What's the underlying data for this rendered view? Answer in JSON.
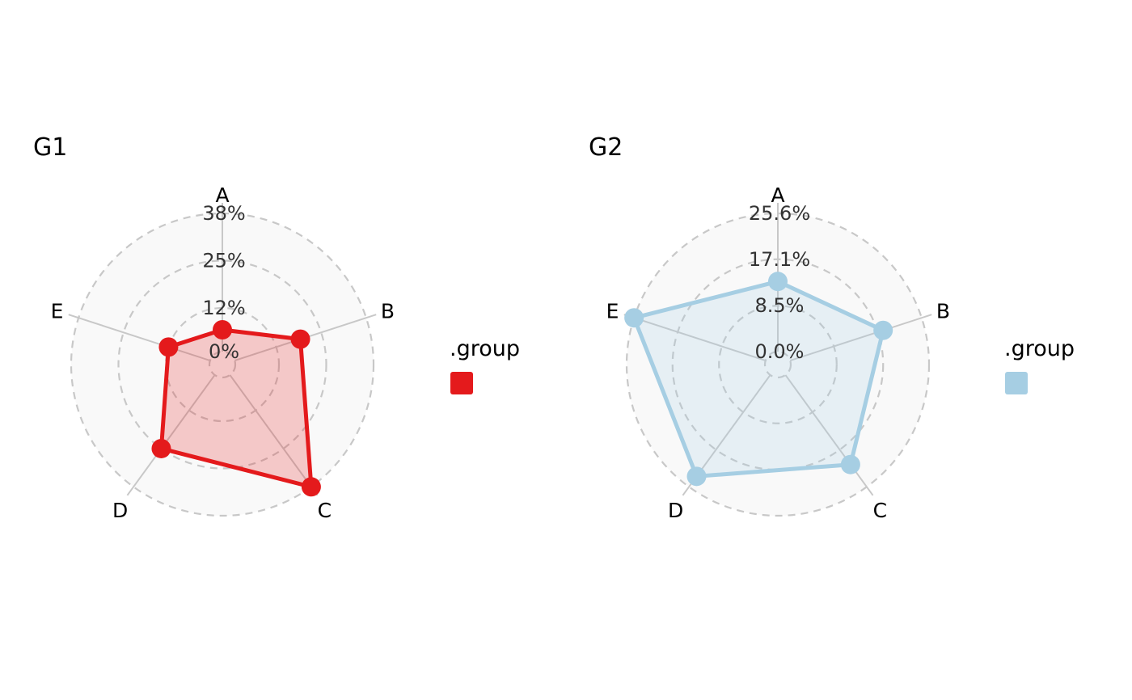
{
  "chart_data": [
    {
      "type": "radar",
      "title": "G1",
      "categories": [
        "A",
        "B",
        "C",
        "D",
        "E"
      ],
      "series": [
        {
          "name": "G1",
          "values": [
            6,
            19,
            38,
            25,
            12
          ],
          "color": "#E41A1C"
        }
      ],
      "value_unit": "%",
      "rlim": [
        0,
        38
      ],
      "grid_levels": [
        0,
        12,
        25,
        38
      ],
      "grid_labels": [
        "0%",
        "12%",
        "25%",
        "38%"
      ],
      "grid_style": "dashed",
      "legend": {
        "title": ".group",
        "placement": "right",
        "entries": [
          {
            "label": "",
            "color": "#E41A1C"
          }
        ]
      }
    },
    {
      "type": "radar",
      "title": "G2",
      "categories": [
        "A",
        "B",
        "C",
        "D",
        "E"
      ],
      "series": [
        {
          "name": "G2",
          "values": [
            13.0,
            18.1,
            20.5,
            23.2,
            25.6
          ],
          "color": "#A6CEE3"
        }
      ],
      "value_unit": "%",
      "rlim": [
        0,
        25.6
      ],
      "grid_levels": [
        0,
        8.5,
        17.1,
        25.6
      ],
      "grid_labels": [
        "0.0%",
        "8.5%",
        "17.1%",
        "25.6%"
      ],
      "grid_style": "dashed",
      "legend": {
        "title": ".group",
        "placement": "right",
        "entries": [
          {
            "label": "",
            "color": "#A6CEE3"
          }
        ]
      }
    }
  ]
}
